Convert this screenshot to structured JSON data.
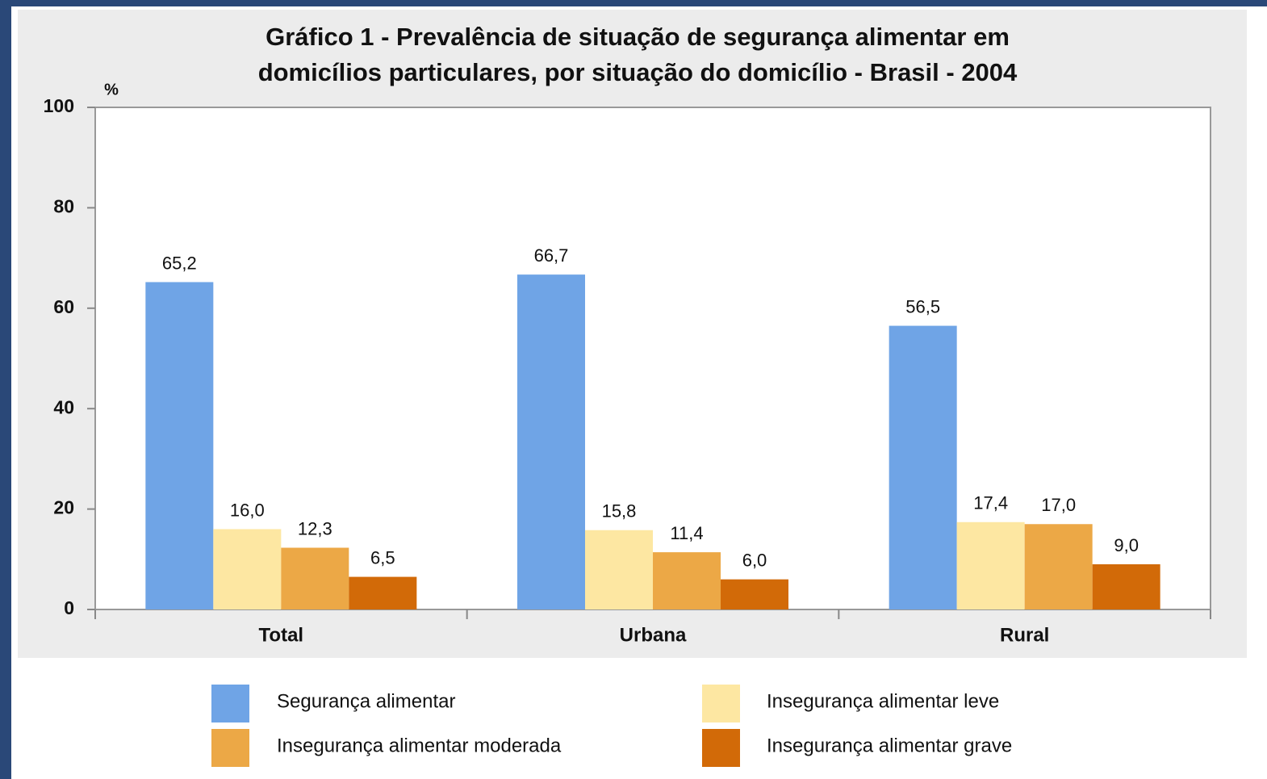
{
  "chart_data": {
    "type": "bar",
    "title": [
      "Gráfico 1 - Prevalência de situação de segurança alimentar em",
      "domicílios particulares, por situação do domicílio - Brasil - 2004"
    ],
    "y_axis_label": "%",
    "categories": [
      "Total",
      "Urbana",
      "Rural"
    ],
    "series": [
      {
        "name": "Segurança alimentar",
        "color": "#6fa4e6",
        "values": [
          65.2,
          66.7,
          56.5
        ],
        "value_labels": [
          "65,2",
          "66,7",
          "56,5"
        ]
      },
      {
        "name": "Insegurança alimentar leve",
        "color": "#fde7a2",
        "values": [
          16.0,
          15.8,
          17.4
        ],
        "value_labels": [
          "16,0",
          "15,8",
          "17,4"
        ]
      },
      {
        "name": "Insegurança alimentar moderada",
        "color": "#eca846",
        "values": [
          12.3,
          11.4,
          17.0
        ],
        "value_labels": [
          "12,3",
          "11,4",
          "17,0"
        ]
      },
      {
        "name": "Insegurança alimentar grave",
        "color": "#d26a08",
        "values": [
          6.5,
          6.0,
          9.0
        ],
        "value_labels": [
          "6,5",
          "6,0",
          "9,0"
        ]
      }
    ],
    "ylim": [
      0,
      100
    ],
    "yticks": [
      0,
      20,
      40,
      60,
      80,
      100
    ],
    "grid": false
  }
}
